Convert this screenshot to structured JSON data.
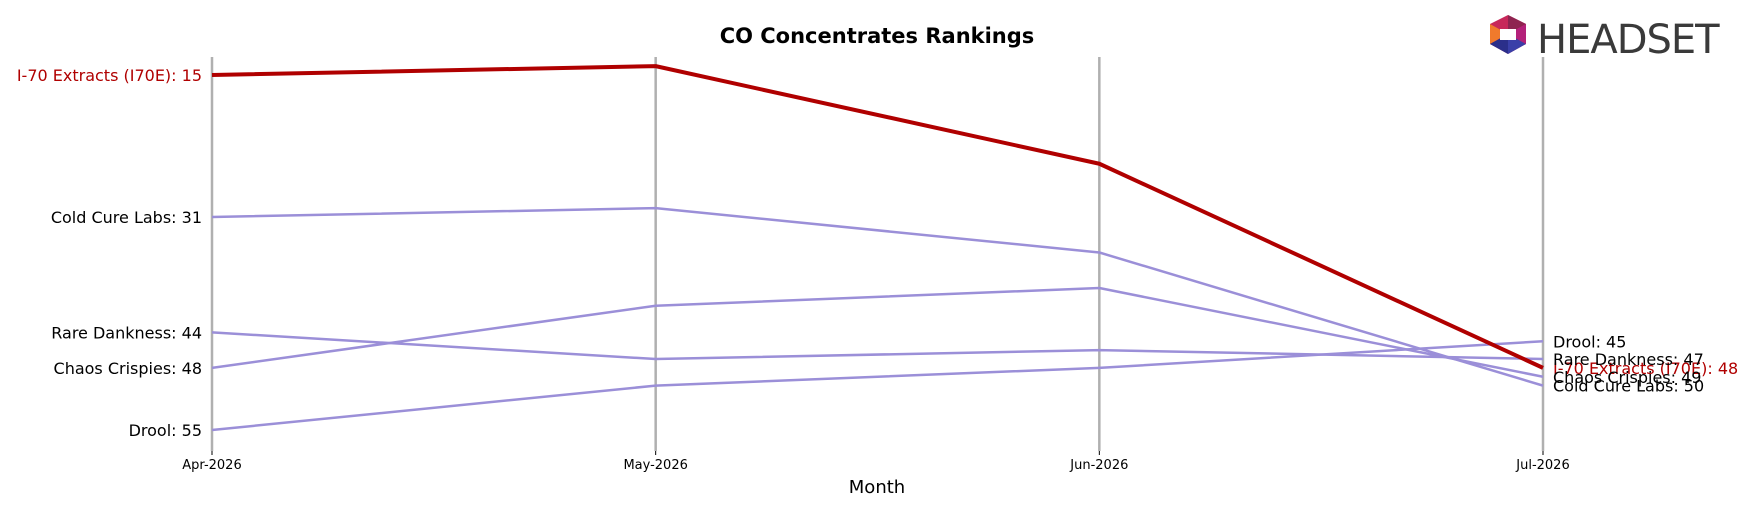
{
  "chart_data": {
    "type": "line",
    "title": "CO Concentrates Rankings",
    "xlabel": "Month",
    "ylabel": "",
    "x": [
      "Apr-2026",
      "May-2026",
      "Jun-2026",
      "Jul-2026"
    ],
    "y_inverted": true,
    "ylim": [
      14,
      56
    ],
    "grid": "vertical lines at each month",
    "series": [
      {
        "name": "I-70 Extracts (I70E)",
        "values": [
          15,
          14,
          25,
          48
        ],
        "color": "#b00000",
        "highlight": true,
        "start_label": "I-70 Extracts (I70E): 15",
        "end_label": "I-70 Extracts (I70E): 48"
      },
      {
        "name": "Cold Cure Labs",
        "values": [
          31,
          30,
          35,
          50
        ],
        "color": "#9b8fd8",
        "highlight": false,
        "start_label": "Cold Cure Labs: 31",
        "end_label": "Cold Cure Labs: 50"
      },
      {
        "name": "Rare Dankness",
        "values": [
          44,
          47,
          46,
          47
        ],
        "color": "#9b8fd8",
        "highlight": false,
        "start_label": "Rare Dankness: 44",
        "end_label": "Rare Dankness: 47"
      },
      {
        "name": "Chaos Crispies",
        "values": [
          48,
          41,
          39,
          49
        ],
        "color": "#9b8fd8",
        "highlight": false,
        "start_label": "Chaos Crispies: 48",
        "end_label": "Chaos Crispies: 49"
      },
      {
        "name": "Drool",
        "values": [
          55,
          50,
          48,
          45
        ],
        "color": "#9b8fd8",
        "highlight": false,
        "start_label": "Drool: 55",
        "end_label": "Drool: 45"
      }
    ]
  },
  "logo": {
    "text": "HEADSET",
    "icon": "headset-hexagon-logo"
  },
  "colors": {
    "grid": "#b0b0b0",
    "highlight": "#b00000",
    "other": "#9b8fd8"
  }
}
